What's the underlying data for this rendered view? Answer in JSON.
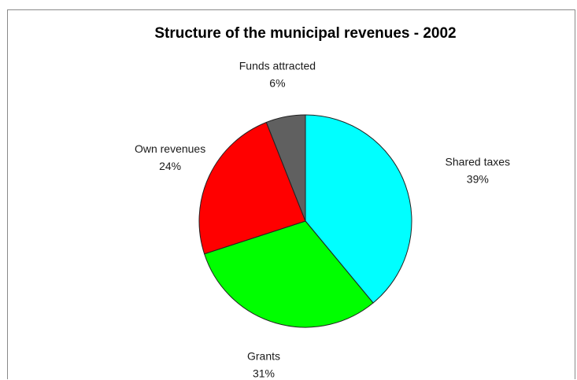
{
  "chart_data": {
    "type": "pie",
    "title": "Structure of the municipal revenues - 2002",
    "start_angle_deg": 0,
    "direction": "clockwise",
    "slices": [
      {
        "label": "Shared taxes",
        "percent_label": "39%",
        "value": 39,
        "color": "#00ffff"
      },
      {
        "label": "Grants",
        "percent_label": "31%",
        "value": 31,
        "color": "#00ff00"
      },
      {
        "label": "Own revenues",
        "percent_label": "24%",
        "value": 24,
        "color": "#ff0000"
      },
      {
        "label": "Funds attracted",
        "percent_label": "6%",
        "value": 6,
        "color": "#606060"
      }
    ],
    "legend": "none",
    "grid": false
  }
}
